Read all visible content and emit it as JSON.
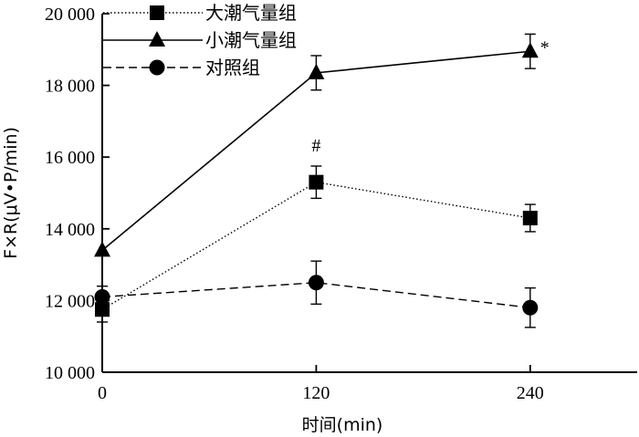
{
  "chart_data": {
    "type": "line",
    "title": "",
    "xlabel": "时间(min)",
    "ylabel": "F×R(μV•P/min)",
    "x": [
      0,
      120,
      240
    ],
    "x_tick_labels": [
      "0",
      "120",
      "240"
    ],
    "xlim": [
      0,
      300
    ],
    "ylim": [
      10000,
      20000
    ],
    "y_ticks": [
      10000,
      12000,
      14000,
      16000,
      18000,
      20000
    ],
    "y_tick_labels": [
      "10 000",
      "12 000",
      "14 000",
      "16 000",
      "18 000",
      "20 000"
    ],
    "grid": false,
    "legend_position": "top-left",
    "series": [
      {
        "name": "大潮气量组",
        "marker": "square",
        "line": "dotted",
        "values": [
          11750,
          15300,
          14300
        ],
        "errors": [
          350,
          450,
          380
        ]
      },
      {
        "name": "小潮气量组",
        "marker": "triangle",
        "line": "solid",
        "values": [
          13400,
          18350,
          18950
        ],
        "errors": [
          0,
          480,
          480
        ]
      },
      {
        "name": "对照组",
        "marker": "circle",
        "line": "dashed",
        "values": [
          12100,
          12500,
          11800
        ],
        "errors": [
          300,
          600,
          550
        ]
      }
    ],
    "annotations": [
      {
        "text": "#",
        "series": "大潮气量组",
        "x": 120
      },
      {
        "text": "*",
        "series": "小潮气量组",
        "x": 240
      }
    ]
  }
}
